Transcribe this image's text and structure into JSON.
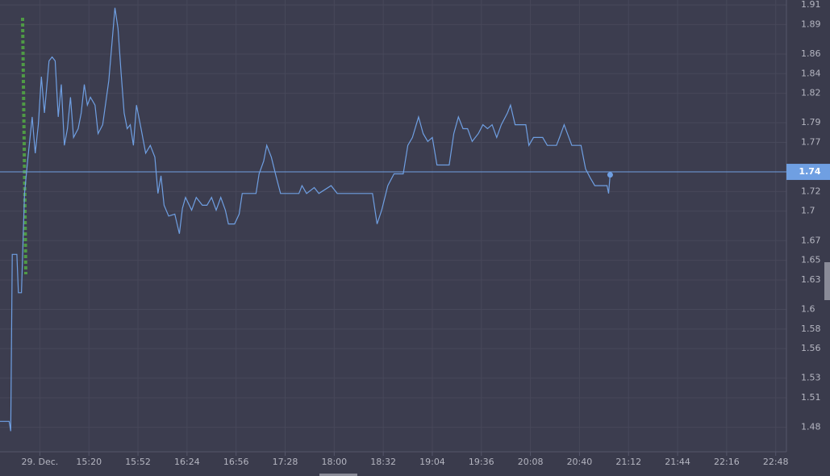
{
  "chart_data": {
    "type": "line",
    "xlim": [
      "14:22",
      "22:55"
    ],
    "ylim": [
      1.455,
      1.915
    ],
    "xticks": [
      {
        "value": "14:48",
        "label": "29. Dec."
      },
      "15:20",
      "15:52",
      "16:24",
      "16:56",
      "17:28",
      "18:00",
      "18:32",
      "19:04",
      "19:36",
      "20:08",
      "20:40",
      "21:12",
      "21:44",
      "22:16",
      "22:48"
    ],
    "yticks": [
      1.48,
      1.51,
      1.53,
      1.56,
      1.58,
      1.6,
      1.63,
      1.65,
      1.67,
      1.7,
      1.72,
      1.77,
      1.79,
      1.82,
      1.84,
      1.86,
      1.89,
      1.91
    ],
    "grid": true,
    "current_price": 1.74,
    "series": [
      {
        "color": "#6f9fe2",
        "x": [
          "14:22",
          "14:28",
          "14:29",
          "14:30",
          "14:33",
          "14:34",
          "14:36",
          "14:38",
          "14:40",
          "14:43",
          "14:45",
          "14:47",
          "14:49",
          "14:51",
          "14:54",
          "14:56",
          "14:58",
          "15:00",
          "15:02",
          "15:04",
          "15:06",
          "15:08",
          "15:10",
          "15:13",
          "15:15",
          "15:17",
          "15:19",
          "15:21",
          "15:24",
          "15:26",
          "15:29",
          "15:33",
          "15:35",
          "15:37",
          "15:39",
          "15:41",
          "15:43",
          "15:45",
          "15:47",
          "15:49",
          "15:51",
          "15:54",
          "15:57",
          "16:00",
          "16:03",
          "16:05",
          "16:07",
          "16:09",
          "16:12",
          "16:16",
          "16:19",
          "16:21",
          "16:23",
          "16:27",
          "16:30",
          "16:34",
          "16:37",
          "16:40",
          "16:43",
          "16:46",
          "16:49",
          "16:51",
          "16:55",
          "16:58",
          "17:00",
          "17:09",
          "17:11",
          "17:14",
          "17:16",
          "17:19",
          "17:22",
          "17:25",
          "17:37",
          "17:39",
          "17:42",
          "17:47",
          "17:50",
          "17:58",
          "18:02",
          "18:25",
          "18:28",
          "18:31",
          "18:35",
          "18:39",
          "18:45",
          "18:48",
          "18:51",
          "18:55",
          "18:58",
          "19:01",
          "19:04",
          "19:07",
          "19:15",
          "19:18",
          "19:21",
          "19:24",
          "19:27",
          "19:30",
          "19:34",
          "19:37",
          "19:40",
          "19:43",
          "19:46",
          "19:49",
          "19:53",
          "19:55",
          "19:58",
          "20:05",
          "20:07",
          "20:10",
          "20:16",
          "20:19",
          "20:25",
          "20:27",
          "20:30",
          "20:35",
          "20:41",
          "20:44",
          "20:47",
          "20:50",
          "20:58",
          "20:59",
          "21:00"
        ],
        "values": [
          1.486,
          1.486,
          1.476,
          1.656,
          1.656,
          1.617,
          1.617,
          1.718,
          1.751,
          1.796,
          1.759,
          1.788,
          1.837,
          1.8,
          1.853,
          1.857,
          1.853,
          1.796,
          1.829,
          1.767,
          1.784,
          1.816,
          1.775,
          1.784,
          1.8,
          1.829,
          1.808,
          1.816,
          1.808,
          1.779,
          1.788,
          1.833,
          1.87,
          1.907,
          1.886,
          1.841,
          1.8,
          1.784,
          1.788,
          1.767,
          1.808,
          1.784,
          1.759,
          1.767,
          1.755,
          1.718,
          1.736,
          1.706,
          1.695,
          1.697,
          1.677,
          1.703,
          1.714,
          1.701,
          1.714,
          1.706,
          1.706,
          1.714,
          1.701,
          1.714,
          1.701,
          1.687,
          1.687,
          1.697,
          1.718,
          1.718,
          1.738,
          1.751,
          1.767,
          1.755,
          1.736,
          1.718,
          1.718,
          1.726,
          1.718,
          1.724,
          1.718,
          1.726,
          1.718,
          1.718,
          1.687,
          1.701,
          1.726,
          1.738,
          1.738,
          1.767,
          1.775,
          1.796,
          1.779,
          1.771,
          1.775,
          1.747,
          1.747,
          1.779,
          1.796,
          1.784,
          1.784,
          1.771,
          1.779,
          1.788,
          1.784,
          1.788,
          1.775,
          1.788,
          1.8,
          1.808,
          1.788,
          1.788,
          1.767,
          1.775,
          1.775,
          1.767,
          1.767,
          1.775,
          1.788,
          1.767,
          1.767,
          1.743,
          1.734,
          1.726,
          1.726,
          1.718,
          1.737
        ]
      }
    ]
  }
}
